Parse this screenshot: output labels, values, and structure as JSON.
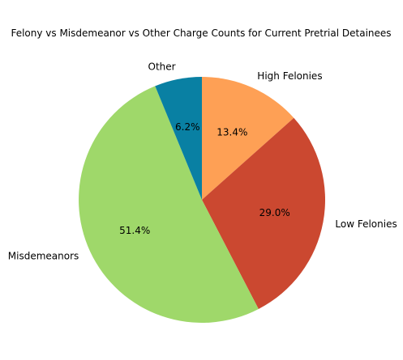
{
  "chart_data": {
    "type": "pie",
    "title": "Felony vs Misdemeanor vs Other Charge Counts for Current Pretrial Detainees",
    "categories": [
      "High Felonies",
      "Low Felonies",
      "Misdemeanors",
      "Other"
    ],
    "values": [
      13.4,
      29.0,
      51.4,
      6.2
    ],
    "percent_labels": [
      "13.4%",
      "29.0%",
      "51.4%",
      "6.2%"
    ],
    "colors": [
      "#fea055",
      "#cb4830",
      "#9fd86a",
      "#0980a3"
    ],
    "start_angle_deg": 90,
    "direction": "clockwise",
    "legend": "none"
  }
}
